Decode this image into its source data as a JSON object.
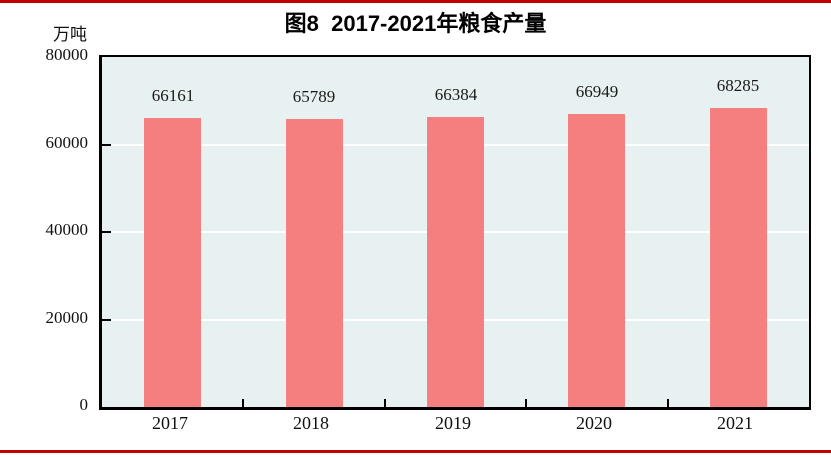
{
  "figure": {
    "title": "图8  2017-2021年粮食产量",
    "unit_label": "万吨"
  },
  "chart_data": {
    "type": "bar",
    "categories": [
      "2017",
      "2018",
      "2019",
      "2020",
      "2021"
    ],
    "values": [
      66161,
      65789,
      66384,
      66949,
      68285
    ],
    "data_labels": [
      "66161",
      "65789",
      "66384",
      "66949",
      "68285"
    ],
    "title": "图8  2017-2021年粮食产量",
    "xlabel": "",
    "ylabel": "万吨",
    "ylim": [
      0,
      80000
    ],
    "yticks": [
      0,
      20000,
      40000,
      60000,
      80000
    ],
    "ytick_labels": [
      "0",
      "20000",
      "40000",
      "60000",
      "80000"
    ],
    "grid": true,
    "legend_position": "none"
  },
  "colors": {
    "rule_red": "#c00000",
    "bar_fill": "#f57e7e",
    "plot_background": "#e8f1f2",
    "gridline": "#ffffff",
    "axis_border": "#000000",
    "text": "#111111"
  }
}
